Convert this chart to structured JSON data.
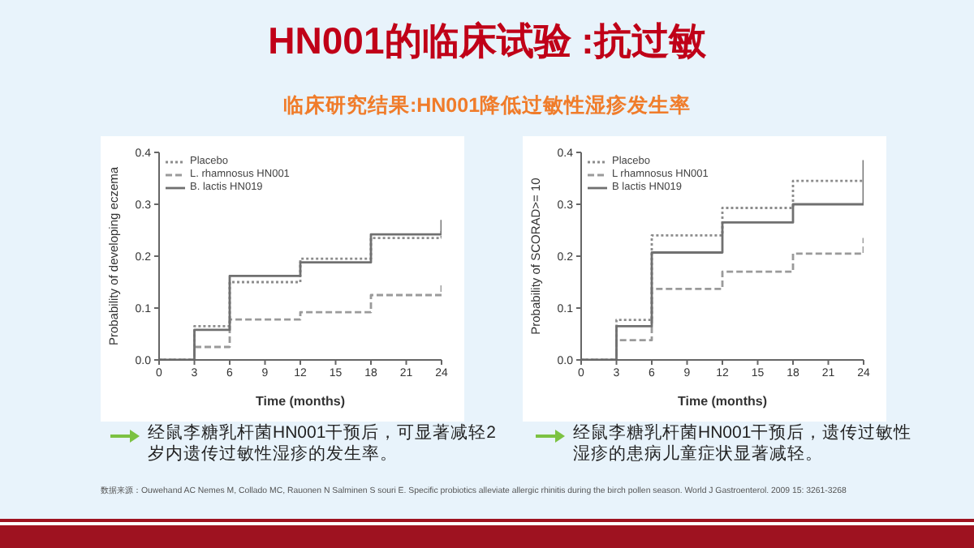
{
  "chart_data": [
    {
      "type": "step",
      "title": "HN001的临床试验 :抗过敏",
      "subtitle": "临床研究结果:HN001降低过敏性湿疹发生率",
      "xlabel": "Time (months)",
      "ylabel": "Probability of developing eczema",
      "x": [
        0,
        3,
        6,
        12,
        18,
        24,
        24
      ],
      "xlim": [
        0,
        24
      ],
      "xticks": [
        0,
        3,
        6,
        9,
        12,
        15,
        18,
        21,
        24
      ],
      "ylim": [
        0,
        0.4
      ],
      "yticks": [
        {
          "value": 0,
          "label": "0.0"
        },
        0.1,
        0.2,
        0.3,
        0.4
      ],
      "legend": "top left",
      "annotations": [
        "经鼠李糖乳杆菌HN001干预后，可显著减轻2岁内遗传过敏性湿疹的发生率。"
      ],
      "series": [
        {
          "name": "Placebo",
          "color": "#8c8c8c",
          "line_style": "dotted",
          "values": [
            0,
            0.065,
            0.15,
            0.195,
            0.235,
            0.235,
            0.25
          ]
        },
        {
          "name": "L. rhamnosus HN001",
          "color": "#9a9a9a",
          "line_style": "dashed",
          "values": [
            0,
            0.025,
            0.078,
            0.092,
            0.125,
            0.125,
            0.145
          ]
        },
        {
          "name": "B. lactis HN019",
          "color": "#707070",
          "line_style": "solid",
          "values": [
            0,
            0.058,
            0.162,
            0.188,
            0.242,
            0.242,
            0.27
          ]
        }
      ]
    },
    {
      "type": "step",
      "xlabel": "Time (months)",
      "ylabel": "Probability of SCORAD>= 10",
      "x": [
        0,
        3,
        6,
        12,
        18,
        24,
        24
      ],
      "xlim": [
        0,
        24
      ],
      "xticks": [
        0,
        3,
        6,
        9,
        12,
        15,
        18,
        21,
        24
      ],
      "ylim": [
        0,
        0.4
      ],
      "yticks": [
        {
          "value": 0,
          "label": "0.0"
        },
        0.1,
        0.2,
        0.3,
        0.4
      ],
      "legend": "top left",
      "annotations": [
        "经鼠李糖乳杆菌HN001干预后，遗传过敏性湿疹的患病儿童症状显著减轻。",
        "数据来源：Ouwehand AC Nemes M, Collado MC, Rauonen N Salminen S souri E. Specific probiotics alleviate allergic rhinitis during the birch pollen season. World J Gastroenterol. 2009 15: 3261-3268"
      ],
      "series": [
        {
          "name": "Placebo",
          "color": "#8c8c8c",
          "line_style": "dotted",
          "values": [
            0,
            0.077,
            0.24,
            0.293,
            0.345,
            0.345,
            0.345
          ]
        },
        {
          "name": "L rhamnosus HN001",
          "color": "#9a9a9a",
          "line_style": "dashed",
          "values": [
            0,
            0.038,
            0.137,
            0.17,
            0.205,
            0.205,
            0.235
          ]
        },
        {
          "name": "B lactis HN019",
          "color": "#707070",
          "line_style": "solid",
          "values": [
            0,
            0.065,
            0.207,
            0.265,
            0.3,
            0.3,
            0.385
          ]
        }
      ]
    }
  ]
}
